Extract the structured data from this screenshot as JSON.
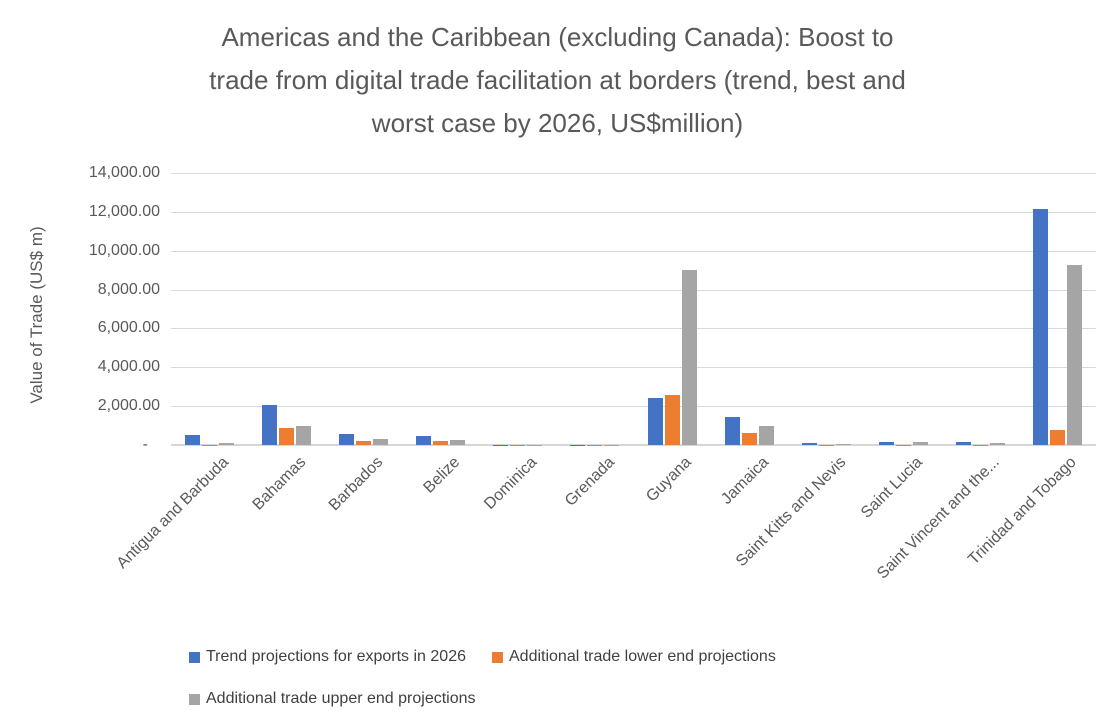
{
  "title_lines": [
    "Americas and the Caribbean (excluding Canada): Boost to",
    "trade from digital trade facilitation at borders (trend, best and",
    "worst case by 2026, US$million)"
  ],
  "chart_data": {
    "type": "bar",
    "title": "Americas and the Caribbean (excluding Canada): Boost to trade from digital trade facilitation at borders (trend, best and worst case by 2026, US$million)",
    "xlabel": "",
    "ylabel": "Value of Trade (US$ m)",
    "ylim": [
      0,
      14000
    ],
    "ytick_step": 2000,
    "grid": true,
    "legend_position": "bottom-left-two-rows",
    "yticks": [
      {
        "value": 14000,
        "label": "14,000.00"
      },
      {
        "value": 12000,
        "label": "12,000.00"
      },
      {
        "value": 10000,
        "label": "10,000.00"
      },
      {
        "value": 8000,
        "label": "8,000.00"
      },
      {
        "value": 6000,
        "label": "6,000.00"
      },
      {
        "value": 4000,
        "label": "4,000.00"
      },
      {
        "value": 2000,
        "label": "2,000.00"
      },
      {
        "value": 0,
        "label": "-"
      }
    ],
    "categories": [
      "Antigua and Barbuda",
      "Bahamas",
      "Barbados",
      "Belize",
      "Dominica",
      "Grenada",
      "Guyana",
      "Jamaica",
      "Saint Kitts and Nevis",
      "Saint Lucia",
      "Saint Vincent and the...",
      "Trinidad and Tobago"
    ],
    "series": [
      {
        "name": "Trend projections for exports in 2026",
        "color": "#4472C4",
        "values": [
          520,
          2050,
          570,
          450,
          15,
          20,
          2420,
          1450,
          90,
          130,
          130,
          12150
        ]
      },
      {
        "name": "Additional trade lower end projections",
        "color": "#ED7D31",
        "values": [
          20,
          880,
          230,
          220,
          5,
          5,
          2590,
          640,
          10,
          20,
          15,
          780
        ]
      },
      {
        "name": "Additional trade upper end projections",
        "color": "#A5A5A5",
        "values": [
          110,
          990,
          300,
          250,
          10,
          15,
          9000,
          1000,
          40,
          180,
          105,
          9250
        ]
      }
    ]
  },
  "colors": {
    "gridline": "#D9D9D9",
    "axis_line": "#D6D6D6",
    "title_text": "#595959",
    "tick_text": "#595959",
    "legend_text": "#404040"
  }
}
